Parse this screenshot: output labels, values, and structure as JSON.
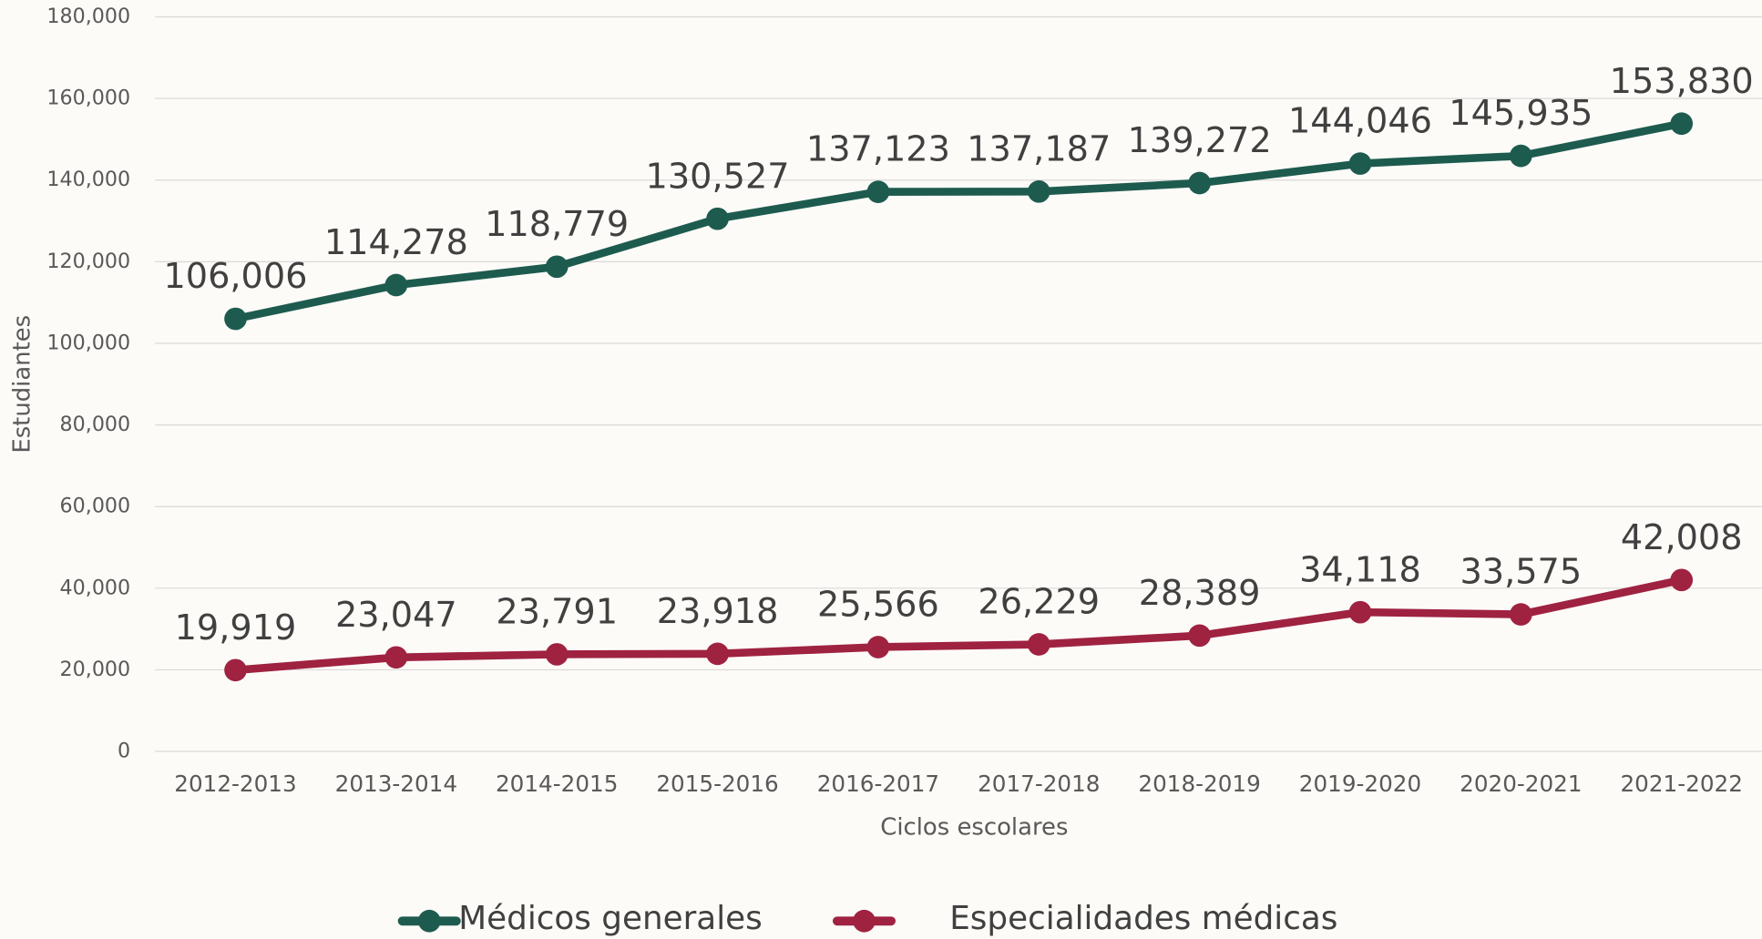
{
  "chart_data": {
    "type": "line",
    "x_label": "Ciclos escolares",
    "y_label": "Estudiantes",
    "categories": [
      "2012-2013",
      "2013-2014",
      "2014-2015",
      "2015-2016",
      "2016-2017",
      "2017-2018",
      "2018-2019",
      "2019-2020",
      "2020-2021",
      "2021-2022"
    ],
    "series": [
      {
        "name": "Médicos generales",
        "color": "#1e5b4f",
        "values": [
          106006,
          114278,
          118779,
          130527,
          137123,
          137187,
          139272,
          144046,
          145935,
          153830
        ],
        "value_labels": [
          "106,006",
          "114,278",
          "118,779",
          "130,527",
          "137,123",
          "137,187",
          "139,272",
          "144,046",
          "145,935",
          "153,830"
        ]
      },
      {
        "name": "Especialidades médicas",
        "color": "#9f2241",
        "values": [
          19919,
          23047,
          23791,
          23918,
          25566,
          26229,
          28389,
          34118,
          33575,
          42008
        ],
        "value_labels": [
          "19,919",
          "23,047",
          "23,791",
          "23,918",
          "25,566",
          "26,229",
          "28,389",
          "34,118",
          "33,575",
          "42,008"
        ]
      }
    ],
    "ylim": [
      0,
      180000
    ],
    "yticks": [
      0,
      {
        "value": 20000,
        "label": "20,000"
      },
      {
        "value": 40000,
        "label": "40,000"
      },
      {
        "value": 60000,
        "label": "60,000"
      },
      {
        "value": 80000,
        "label": "80,000"
      },
      {
        "value": 100000,
        "label": "100,000"
      },
      {
        "value": 120000,
        "label": "120,000"
      },
      {
        "value": 140000,
        "label": "140,000"
      },
      {
        "value": 160000,
        "label": "160,000"
      },
      {
        "value": 180000,
        "label": "180,000"
      }
    ],
    "grid": true,
    "legend": "bottom"
  }
}
